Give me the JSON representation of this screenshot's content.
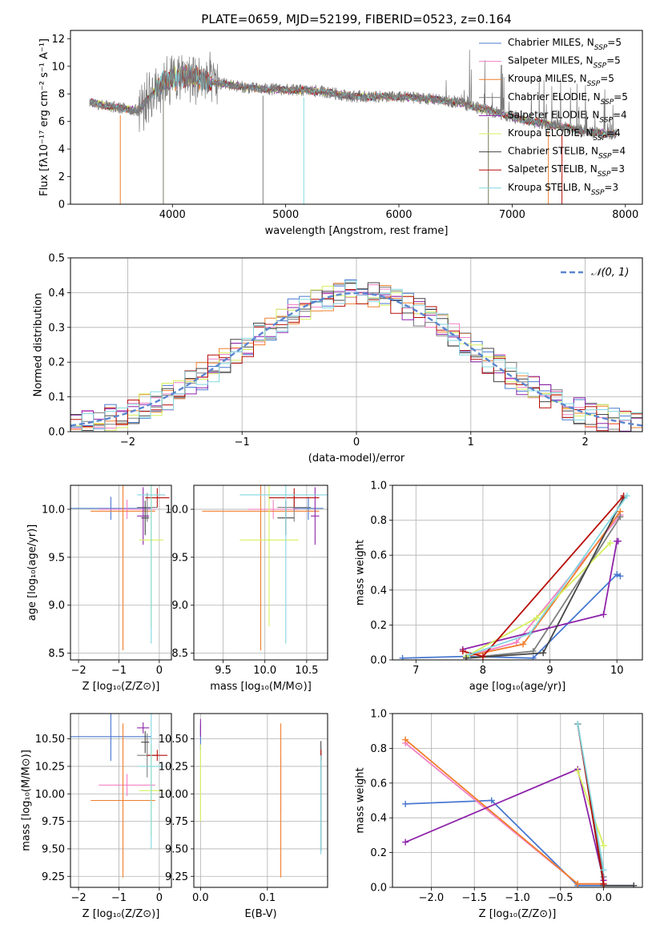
{
  "figure": {
    "title": "PLATE=0659, MJD=52199, FIBERID=0523, z=0.164"
  },
  "colors": [
    "#4878d0",
    "#f281c5",
    "#f07f2e",
    "#7f7f7f",
    "#8e24aa",
    "#d4f05c",
    "#454545",
    "#b80f0a",
    "#82d7e0"
  ],
  "chart_data": [
    {
      "id": "spectrum",
      "type": "line",
      "xlabel": "wavelength [Angstrom, rest frame]",
      "ylabel": "Flux [fλ10⁻¹⁷ erg cm⁻² s⁻¹ A⁻¹]",
      "xlim": [
        3100,
        8150
      ],
      "ylim": [
        0,
        12.6
      ],
      "xticks": [
        4000,
        5000,
        6000,
        7000,
        8000
      ],
      "yticks": [
        0,
        2,
        4,
        6,
        8,
        10,
        12
      ],
      "grid": false,
      "legend": "right",
      "x_range": [
        3270,
        7920
      ],
      "continuum": {
        "x": [
          3270,
          3500,
          3700,
          3900,
          4100,
          4400,
          4700,
          5000,
          5300,
          5600,
          5900,
          6200,
          6500,
          6800,
          7100,
          7400,
          7700,
          7920
        ],
        "y": [
          7.4,
          7.0,
          6.8,
          8.8,
          9.3,
          8.8,
          8.4,
          8.3,
          8.2,
          7.8,
          7.8,
          7.7,
          7.4,
          6.8,
          6.1,
          5.7,
          5.2,
          5.1
        ]
      },
      "observed_name": "Chabrier ELODIE, N_SSP=5",
      "series": [
        {
          "name": "Chabrier MILES, N_SSP=5"
        },
        {
          "name": "Salpeter MILES, N_SSP=5"
        },
        {
          "name": "Kroupa MILES, N_SSP=5"
        },
        {
          "name": "Chabrier ELODIE, N_SSP=5"
        },
        {
          "name": "Salpeter ELODIE, N_SSP=4"
        },
        {
          "name": "Kroupa ELODIE, N_SSP=4"
        },
        {
          "name": "Chabrier STELIB, N_SSP=4"
        },
        {
          "name": "Salpeter STELIB, N_SSP=3"
        },
        {
          "name": "Kroupa STELIB, N_SSP=3"
        }
      ]
    },
    {
      "id": "residuals",
      "type": "line",
      "xlabel": "(data-model)/error",
      "ylabel": "Normed distribution",
      "xlim": [
        -2.5,
        2.5
      ],
      "ylim": [
        0,
        0.5
      ],
      "xticks": [
        -2,
        -1,
        0,
        1,
        2
      ],
      "yticks": [
        0.0,
        0.1,
        0.2,
        0.3,
        0.4,
        0.5
      ],
      "grid": true,
      "legend": "top-right",
      "reference": {
        "name": "𝒩(0, 1)",
        "mu": 0,
        "sigma": 1
      },
      "bin_width": 0.1
    },
    {
      "id": "age_vs_Z",
      "type": "scatter",
      "xlabel": "Z [log₁₀(Z/Z⊙)]",
      "ylabel": "age  [log₁₀(age/yr)]",
      "xlim": [
        -2.2,
        0.3
      ],
      "ylim": [
        8.43,
        10.25
      ],
      "xticks": [
        -2,
        -1,
        0
      ],
      "yticks": [
        8.5,
        9.0,
        9.5,
        10.0
      ],
      "grid": true,
      "points": [
        {
          "s": 0,
          "x": -1.2,
          "y": 10.01,
          "xerr": 1.0,
          "yerr": 0.12
        },
        {
          "s": 1,
          "x": -0.8,
          "y": 10.0,
          "xerr": 0.7,
          "yerr": 0.1
        },
        {
          "s": 2,
          "x": -0.9,
          "y": 9.98,
          "xerr": 0.8,
          "yerr": 1.45
        },
        {
          "s": 3,
          "x": -0.3,
          "y": 10.02,
          "xerr": 0.25,
          "yerr": 0.15
        },
        {
          "s": 4,
          "x": -0.4,
          "y": 9.93,
          "xerr": 0.15,
          "yerr": 0.3
        },
        {
          "s": 5,
          "x": -0.2,
          "y": 9.68,
          "xerr": 0.3,
          "yerr": 0.9
        },
        {
          "s": 6,
          "x": -0.35,
          "y": 9.91,
          "xerr": 0.1,
          "yerr": 0.18
        },
        {
          "s": 7,
          "x": -0.05,
          "y": 10.12,
          "xerr": 0.3,
          "yerr": 0.1
        },
        {
          "s": 8,
          "x": -0.2,
          "y": 10.15,
          "xerr": 0.35,
          "yerr": 1.55
        }
      ]
    },
    {
      "id": "age_vs_mass",
      "type": "scatter",
      "xlabel": "mass [log₁₀(M/M⊙)]",
      "ylabel": "",
      "xlim": [
        9.15,
        10.75
      ],
      "ylim": [
        8.43,
        10.25
      ],
      "xticks": [
        9.5,
        10.0,
        10.5
      ],
      "yticks": [
        8.5,
        9.0,
        9.5,
        10.0
      ],
      "grid": true,
      "points": [
        {
          "s": 0,
          "x": 10.52,
          "y": 10.01,
          "xerr": 0.18,
          "yerr": 0.12
        },
        {
          "s": 1,
          "x": 10.1,
          "y": 10.0,
          "xerr": 0.3,
          "yerr": 0.1
        },
        {
          "s": 2,
          "x": 9.95,
          "y": 9.98,
          "xerr": 0.7,
          "yerr": 1.45
        },
        {
          "s": 3,
          "x": 10.35,
          "y": 10.02,
          "xerr": 0.2,
          "yerr": 0.15
        },
        {
          "s": 4,
          "x": 10.6,
          "y": 9.93,
          "xerr": 0.05,
          "yerr": 0.3
        },
        {
          "s": 5,
          "x": 10.05,
          "y": 9.68,
          "xerr": 0.35,
          "yerr": 0.9
        },
        {
          "s": 6,
          "x": 10.25,
          "y": 9.91,
          "xerr": 0.1,
          "yerr": 0.18
        },
        {
          "s": 7,
          "x": 10.35,
          "y": 10.12,
          "xerr": 0.3,
          "yerr": 0.1
        },
        {
          "s": 8,
          "x": 10.25,
          "y": 10.15,
          "xerr": 0.55,
          "yerr": 1.55
        }
      ]
    },
    {
      "id": "weight_vs_age",
      "type": "line",
      "xlabel": "age  [log₁₀(age/yr)]",
      "ylabel": "mass weight",
      "xlim": [
        6.65,
        10.38
      ],
      "ylim": [
        0,
        1.0
      ],
      "xticks": [
        7,
        8,
        9,
        10
      ],
      "yticks": [
        0.0,
        0.2,
        0.4,
        0.6,
        0.8,
        1.0
      ],
      "grid": true,
      "series": [
        {
          "s": 0,
          "x": [
            6.8,
            7.75,
            8.75,
            10.0,
            10.05
          ],
          "y": [
            0.01,
            0.02,
            0.01,
            0.49,
            0.48
          ]
        },
        {
          "s": 1,
          "x": [
            7.75,
            8.5,
            10.05
          ],
          "y": [
            0.02,
            0.1,
            0.83
          ]
        },
        {
          "s": 2,
          "x": [
            7.75,
            8.6,
            10.05
          ],
          "y": [
            0.02,
            0.09,
            0.85
          ]
        },
        {
          "s": 3,
          "x": [
            7.75,
            8.75,
            10.05
          ],
          "y": [
            0.01,
            0.05,
            0.82
          ]
        },
        {
          "s": 4,
          "x": [
            7.7,
            9.8,
            10.0,
            10.02
          ],
          "y": [
            0.06,
            0.26,
            0.68,
            0.68
          ]
        },
        {
          "s": 5,
          "x": [
            7.75,
            8.8,
            9.9
          ],
          "y": [
            0.02,
            0.24,
            0.67
          ]
        },
        {
          "s": 6,
          "x": [
            7.75,
            8.9,
            10.1
          ],
          "y": [
            0.01,
            0.04,
            0.93
          ]
        },
        {
          "s": 7,
          "x": [
            7.7,
            8.0,
            10.1
          ],
          "y": [
            0.05,
            0.02,
            0.94
          ]
        },
        {
          "s": 8,
          "x": [
            7.8,
            8.7,
            10.15
          ],
          "y": [
            0.03,
            0.15,
            0.94
          ]
        }
      ]
    },
    {
      "id": "mass_vs_Z",
      "type": "scatter",
      "xlabel": "Z [log₁₀(Z/Z⊙)]",
      "ylabel": "mass [log₁₀(M/M⊙)]",
      "xlim": [
        -2.2,
        0.3
      ],
      "ylim": [
        9.15,
        10.73
      ],
      "xticks": [
        -2,
        -1,
        0
      ],
      "yticks": [
        9.25,
        9.5,
        9.75,
        10.0,
        10.25,
        10.5
      ],
      "grid": true,
      "points": [
        {
          "s": 0,
          "x": -1.2,
          "y": 10.52,
          "xerr": 1.0,
          "yerr": 0.22
        },
        {
          "s": 1,
          "x": -0.8,
          "y": 10.08,
          "xerr": 0.7,
          "yerr": 0.1
        },
        {
          "s": 2,
          "x": -0.9,
          "y": 9.94,
          "xerr": 0.8,
          "yerr": 0.7
        },
        {
          "s": 3,
          "x": -0.3,
          "y": 10.35,
          "xerr": 0.25,
          "yerr": 0.2
        },
        {
          "s": 4,
          "x": -0.4,
          "y": 10.6,
          "xerr": 0.15,
          "yerr": 0.05
        },
        {
          "s": 5,
          "x": -0.2,
          "y": 10.03,
          "xerr": 0.3,
          "yerr": 0.42
        },
        {
          "s": 6,
          "x": -0.35,
          "y": 10.47,
          "xerr": 0.1,
          "yerr": 0.1
        },
        {
          "s": 7,
          "x": -0.05,
          "y": 10.35,
          "xerr": 0.25,
          "yerr": 0.05
        },
        {
          "s": 8,
          "x": -0.2,
          "y": 10.25,
          "xerr": 0.3,
          "yerr": 0.75
        }
      ]
    },
    {
      "id": "mass_vs_ebv",
      "type": "scatter",
      "xlabel": "E(B-V)",
      "ylabel": "",
      "xlim": [
        -0.01,
        0.19
      ],
      "ylim": [
        9.15,
        10.73
      ],
      "xticks": [
        0.0,
        0.1
      ],
      "yticks": [
        9.25,
        9.5,
        9.75,
        10.0,
        10.25,
        10.5
      ],
      "grid": true,
      "points": [
        {
          "s": 0,
          "x": 0.0,
          "y": 10.52,
          "xerr": 0,
          "yerr": 0.12
        },
        {
          "s": 1,
          "x": 0.12,
          "y": 10.08,
          "xerr": 0,
          "yerr": 0.25
        },
        {
          "s": 2,
          "x": 0.12,
          "y": 9.94,
          "xerr": 0,
          "yerr": 0.7
        },
        {
          "s": 3,
          "x": 0.18,
          "y": 10.35,
          "xerr": 0,
          "yerr": 0.05
        },
        {
          "s": 4,
          "x": 0.0,
          "y": 10.6,
          "xerr": 0,
          "yerr": 0.08
        },
        {
          "s": 5,
          "x": 0.0,
          "y": 10.1,
          "xerr": 0,
          "yerr": 0.35
        },
        {
          "s": 6,
          "x": 0.18,
          "y": 9.98,
          "xerr": 0,
          "yerr": 0.5
        },
        {
          "s": 7,
          "x": 0.18,
          "y": 10.35,
          "xerr": 0,
          "yerr": 0.05
        },
        {
          "s": 8,
          "x": 0.18,
          "y": 9.9,
          "xerr": 0,
          "yerr": 0.45
        }
      ]
    },
    {
      "id": "weight_vs_Z",
      "type": "line",
      "xlabel": "Z [log₁₀(Z/Z⊙)]",
      "ylabel": "mass weight",
      "xlim": [
        -2.45,
        0.45
      ],
      "ylim": [
        0,
        1.0
      ],
      "xticks": [
        -2.0,
        -1.5,
        -1.0,
        -0.5,
        0.0
      ],
      "yticks": [
        0.0,
        0.2,
        0.4,
        0.6,
        0.8,
        1.0
      ],
      "grid": true,
      "series": [
        {
          "s": 0,
          "x": [
            -2.3,
            -1.3,
            -0.3,
            0.0,
            0.35
          ],
          "y": [
            0.48,
            0.5,
            0.01,
            0.01,
            0.01
          ]
        },
        {
          "s": 1,
          "x": [
            -2.3,
            -0.3,
            0.0
          ],
          "y": [
            0.83,
            0.02,
            0.02
          ]
        },
        {
          "s": 2,
          "x": [
            -2.3,
            -0.3,
            0.0
          ],
          "y": [
            0.85,
            0.02,
            0.02
          ]
        },
        {
          "s": 3,
          "x": [
            -0.3,
            0.0
          ],
          "y": [
            0.94,
            0.06
          ]
        },
        {
          "s": 4,
          "x": [
            -2.3,
            -0.3,
            0.0
          ],
          "y": [
            0.26,
            0.68,
            0.04
          ]
        },
        {
          "s": 5,
          "x": [
            -0.3,
            0.0
          ],
          "y": [
            0.67,
            0.24
          ]
        },
        {
          "s": 6,
          "x": [
            -0.3,
            0.0,
            0.35
          ],
          "y": [
            0.94,
            0.01,
            0.01
          ]
        },
        {
          "s": 7,
          "x": [
            -0.3,
            0.0
          ],
          "y": [
            0.94,
            0.02
          ]
        },
        {
          "s": 8,
          "x": [
            -0.3,
            0.0
          ],
          "y": [
            0.94,
            0.1
          ]
        }
      ]
    }
  ]
}
